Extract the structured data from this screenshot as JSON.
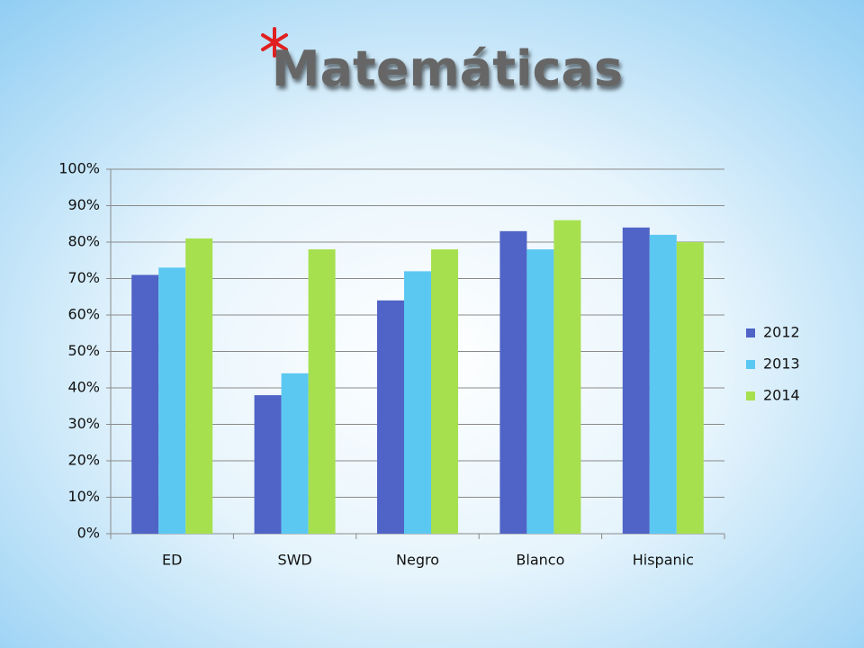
{
  "chart_data": {
    "type": "bar",
    "title": "Matemáticas",
    "categories": [
      "ED",
      "SWD",
      "Negro",
      "Blanco",
      "Hispanic"
    ],
    "series": [
      {
        "name": "2012",
        "color": "#4f64c6",
        "values": [
          71,
          38,
          64,
          83,
          84
        ]
      },
      {
        "name": "2013",
        "color": "#5bc8f2",
        "values": [
          73,
          44,
          72,
          78,
          82
        ]
      },
      {
        "name": "2014",
        "color": "#a6e04e",
        "values": [
          81,
          78,
          78,
          86,
          80
        ]
      }
    ],
    "ylim": [
      0,
      100
    ],
    "yticks": [
      {
        "value": 0,
        "label": "0%"
      },
      {
        "value": 10,
        "label": "10%"
      },
      {
        "value": 20,
        "label": "20%"
      },
      {
        "value": 30,
        "label": "30%"
      },
      {
        "value": 40,
        "label": "40%"
      },
      {
        "value": 50,
        "label": "50%"
      },
      {
        "value": 60,
        "label": "60%"
      },
      {
        "value": 70,
        "label": "70%"
      },
      {
        "value": 80,
        "label": "80%"
      },
      {
        "value": 90,
        "label": "90%"
      },
      {
        "value": 100,
        "label": "100%"
      }
    ],
    "grid": true,
    "legend": "right"
  }
}
